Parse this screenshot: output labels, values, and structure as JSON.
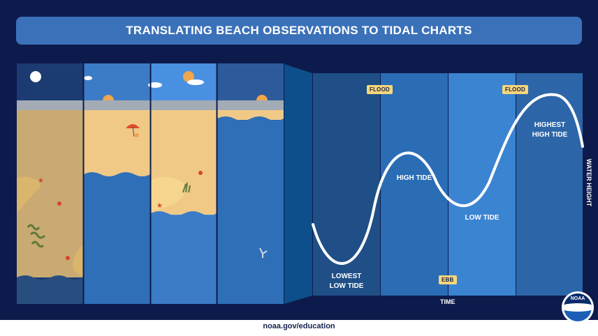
{
  "title": "TRANSLATING BEACH OBSERVATIONS TO TIDAL CHARTS",
  "labels": {
    "lowest_line1": "LOWEST",
    "lowest_line2": "LOW TIDE",
    "high": "HIGH TIDE",
    "low": "LOW TIDE",
    "highest_line1": "HIGHEST",
    "highest_line2": "HIGH TIDE"
  },
  "badges": {
    "flood_1": "FLOOD",
    "flood_2": "FLOOD",
    "ebb": "EBB"
  },
  "axes": {
    "x": "TIME",
    "y": "WATER HEIGHT"
  },
  "footer": "noaa.gov/education",
  "logo": "NOAA",
  "colors": {
    "background": "#0d1b4c",
    "title_bar": "#3b71b9",
    "sand": "#f0c987",
    "water": "#2f6fb8",
    "curve": "#ffffff",
    "badge": "#f7d67a"
  }
}
